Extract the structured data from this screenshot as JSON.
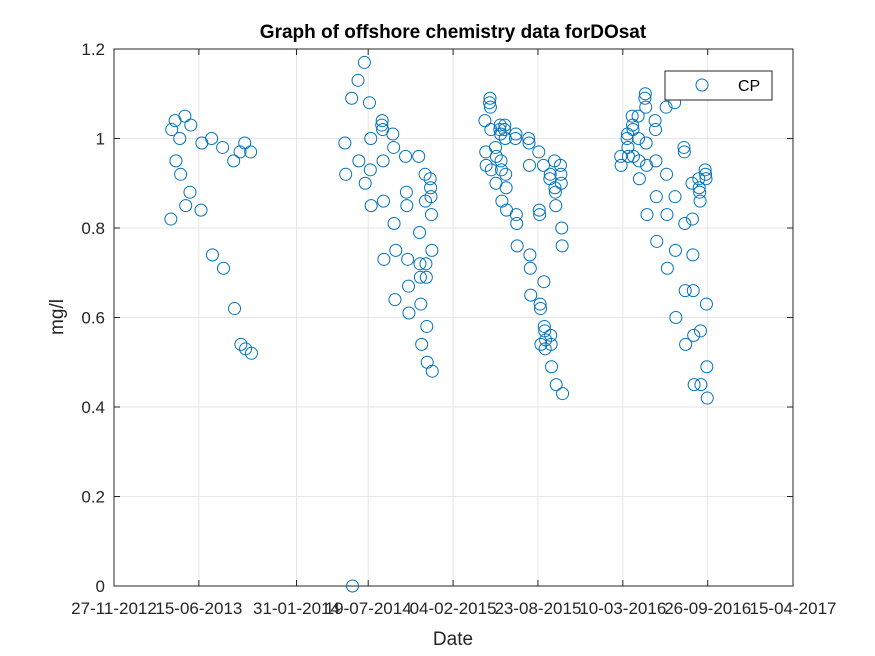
{
  "chart_data": {
    "type": "scatter",
    "title": "Graph of offshore chemistry data forDOsat",
    "xlabel": "Date",
    "ylabel": "mg/l",
    "xlim": [
      "2012-11-27",
      "2017-04-15"
    ],
    "ylim": [
      0,
      1.2
    ],
    "x_ticks": [
      "27-11-2012",
      "15-06-2013",
      "31-01-2014",
      "19-07-2014",
      "04-02-2015",
      "23-08-2015",
      "10-03-2016",
      "26-09-2016",
      "15-04-2017"
    ],
    "y_ticks": [
      "0",
      "0.2",
      "0.4",
      "0.6",
      "0.8",
      "1",
      "1.2"
    ],
    "grid": true,
    "legend_position": "top-right",
    "marker": "open-circle",
    "color": "#0072bd",
    "series": [
      {
        "name": "CP",
        "points": [
          [
            "2013-04-10",
            0.82
          ],
          [
            "2013-04-12",
            1.02
          ],
          [
            "2013-04-20",
            1.04
          ],
          [
            "2013-04-22",
            0.95
          ],
          [
            "2013-05-01",
            1.0
          ],
          [
            "2013-05-03",
            0.92
          ],
          [
            "2013-05-13",
            1.05
          ],
          [
            "2013-05-15",
            0.85
          ],
          [
            "2013-05-25",
            0.88
          ],
          [
            "2013-05-27",
            1.03
          ],
          [
            "2013-06-20",
            0.84
          ],
          [
            "2013-06-22",
            0.99
          ],
          [
            "2013-07-15",
            1.0
          ],
          [
            "2013-07-17",
            0.74
          ],
          [
            "2013-08-10",
            0.98
          ],
          [
            "2013-08-12",
            0.71
          ],
          [
            "2013-09-05",
            0.95
          ],
          [
            "2013-09-07",
            0.62
          ],
          [
            "2013-09-20",
            0.97
          ],
          [
            "2013-09-22",
            0.54
          ],
          [
            "2013-10-01",
            0.99
          ],
          [
            "2013-10-03",
            0.53
          ],
          [
            "2013-10-15",
            0.97
          ],
          [
            "2013-10-17",
            0.52
          ],
          [
            "2014-05-25",
            0.99
          ],
          [
            "2014-05-27",
            0.92
          ],
          [
            "2014-06-10",
            1.09
          ],
          [
            "2014-06-12",
            0.0
          ],
          [
            "2014-06-25",
            1.13
          ],
          [
            "2014-06-27",
            0.95
          ],
          [
            "2014-07-10",
            1.17
          ],
          [
            "2014-07-12",
            0.9
          ],
          [
            "2014-07-22",
            1.08
          ],
          [
            "2014-07-24",
            0.93
          ],
          [
            "2014-07-25",
            1.0
          ],
          [
            "2014-07-26",
            0.85
          ],
          [
            "2014-08-20",
            1.03
          ],
          [
            "2014-08-21",
            1.04
          ],
          [
            "2014-08-22",
            1.02
          ],
          [
            "2014-08-23",
            0.95
          ],
          [
            "2014-08-24",
            0.86
          ],
          [
            "2014-08-25",
            0.73
          ],
          [
            "2014-09-15",
            1.01
          ],
          [
            "2014-09-17",
            0.98
          ],
          [
            "2014-09-18",
            0.81
          ],
          [
            "2014-09-20",
            0.64
          ],
          [
            "2014-09-22",
            0.75
          ],
          [
            "2014-10-15",
            0.96
          ],
          [
            "2014-10-17",
            0.88
          ],
          [
            "2014-10-18",
            0.85
          ],
          [
            "2014-10-20",
            0.73
          ],
          [
            "2014-10-22",
            0.67
          ],
          [
            "2014-10-23",
            0.61
          ],
          [
            "2014-11-15",
            0.96
          ],
          [
            "2014-11-17",
            0.79
          ],
          [
            "2014-11-18",
            0.72
          ],
          [
            "2014-11-19",
            0.69
          ],
          [
            "2014-11-20",
            0.63
          ],
          [
            "2014-11-22",
            0.54
          ],
          [
            "2014-11-30",
            0.92
          ],
          [
            "2014-12-01",
            0.86
          ],
          [
            "2014-12-02",
            0.72
          ],
          [
            "2014-12-03",
            0.69
          ],
          [
            "2014-12-04",
            0.58
          ],
          [
            "2014-12-05",
            0.5
          ],
          [
            "2014-12-12",
            0.91
          ],
          [
            "2014-12-13",
            0.89
          ],
          [
            "2014-12-14",
            0.87
          ],
          [
            "2014-12-15",
            0.83
          ],
          [
            "2014-12-16",
            0.75
          ],
          [
            "2014-12-17",
            0.48
          ],
          [
            "2015-04-20",
            1.04
          ],
          [
            "2015-04-22",
            0.97
          ],
          [
            "2015-04-23",
            0.94
          ],
          [
            "2015-05-01",
            1.08
          ],
          [
            "2015-05-02",
            1.09
          ],
          [
            "2015-05-03",
            1.07
          ],
          [
            "2015-05-04",
            1.02
          ],
          [
            "2015-05-05",
            0.93
          ],
          [
            "2015-05-15",
            0.98
          ],
          [
            "2015-05-16",
            0.9
          ],
          [
            "2015-05-17",
            0.96
          ],
          [
            "2015-05-25",
            1.02
          ],
          [
            "2015-05-26",
            1.03
          ],
          [
            "2015-05-27",
            1.01
          ],
          [
            "2015-05-28",
            0.95
          ],
          [
            "2015-05-29",
            0.93
          ],
          [
            "2015-05-30",
            0.86
          ],
          [
            "2015-06-05",
            1.02
          ],
          [
            "2015-06-06",
            1.03
          ],
          [
            "2015-06-07",
            1.0
          ],
          [
            "2015-06-08",
            0.92
          ],
          [
            "2015-06-09",
            0.89
          ],
          [
            "2015-06-10",
            0.84
          ],
          [
            "2015-07-01",
            1.0
          ],
          [
            "2015-07-02",
            1.01
          ],
          [
            "2015-07-03",
            0.83
          ],
          [
            "2015-07-04",
            0.81
          ],
          [
            "2015-07-05",
            0.76
          ],
          [
            "2015-08-01",
            1.0
          ],
          [
            "2015-08-02",
            0.99
          ],
          [
            "2015-08-03",
            0.94
          ],
          [
            "2015-08-04",
            0.74
          ],
          [
            "2015-08-05",
            0.71
          ],
          [
            "2015-08-06",
            0.65
          ],
          [
            "2015-08-25",
            0.97
          ],
          [
            "2015-08-26",
            0.84
          ],
          [
            "2015-08-27",
            0.83
          ],
          [
            "2015-08-28",
            0.63
          ],
          [
            "2015-08-29",
            0.62
          ],
          [
            "2015-08-30",
            0.54
          ],
          [
            "2015-09-05",
            0.94
          ],
          [
            "2015-09-06",
            0.68
          ],
          [
            "2015-09-07",
            0.58
          ],
          [
            "2015-09-08",
            0.57
          ],
          [
            "2015-09-09",
            0.53
          ],
          [
            "2015-09-10",
            0.55
          ],
          [
            "2015-09-20",
            0.91
          ],
          [
            "2015-09-21",
            0.92
          ],
          [
            "2015-09-22",
            0.56
          ],
          [
            "2015-09-23",
            0.54
          ],
          [
            "2015-09-24",
            0.49
          ],
          [
            "2015-10-01",
            0.95
          ],
          [
            "2015-10-02",
            0.89
          ],
          [
            "2015-10-03",
            0.88
          ],
          [
            "2015-10-04",
            0.85
          ],
          [
            "2015-10-05",
            0.45
          ],
          [
            "2015-10-15",
            0.94
          ],
          [
            "2015-10-16",
            0.92
          ],
          [
            "2015-10-17",
            0.9
          ],
          [
            "2015-10-18",
            0.8
          ],
          [
            "2015-10-19",
            0.76
          ],
          [
            "2015-10-20",
            0.43
          ],
          [
            "2016-03-05",
            0.96
          ],
          [
            "2016-03-06",
            0.94
          ],
          [
            "2016-03-20",
            1.0
          ],
          [
            "2016-03-21",
            1.01
          ],
          [
            "2016-03-22",
            0.98
          ],
          [
            "2016-03-23",
            0.96
          ],
          [
            "2016-04-01",
            1.05
          ],
          [
            "2016-04-02",
            1.03
          ],
          [
            "2016-04-03",
            1.02
          ],
          [
            "2016-04-04",
            0.96
          ],
          [
            "2016-04-15",
            1.05
          ],
          [
            "2016-04-16",
            1.0
          ],
          [
            "2016-04-17",
            0.95
          ],
          [
            "2016-04-18",
            0.91
          ],
          [
            "2016-05-01",
            1.09
          ],
          [
            "2016-05-02",
            1.1
          ],
          [
            "2016-05-03",
            1.07
          ],
          [
            "2016-05-04",
            0.99
          ],
          [
            "2016-05-05",
            0.94
          ],
          [
            "2016-05-06",
            0.83
          ],
          [
            "2016-05-25",
            1.04
          ],
          [
            "2016-05-26",
            1.02
          ],
          [
            "2016-05-27",
            0.95
          ],
          [
            "2016-05-28",
            0.87
          ],
          [
            "2016-05-29",
            0.77
          ],
          [
            "2016-06-20",
            1.07
          ],
          [
            "2016-06-21",
            0.92
          ],
          [
            "2016-06-22",
            0.83
          ],
          [
            "2016-06-23",
            0.71
          ],
          [
            "2016-07-10",
            1.08
          ],
          [
            "2016-07-11",
            0.87
          ],
          [
            "2016-07-12",
            0.75
          ],
          [
            "2016-07-13",
            0.6
          ],
          [
            "2016-08-01",
            0.98
          ],
          [
            "2016-08-02",
            0.97
          ],
          [
            "2016-08-03",
            0.81
          ],
          [
            "2016-08-04",
            0.66
          ],
          [
            "2016-08-05",
            0.54
          ],
          [
            "2016-08-20",
            0.9
          ],
          [
            "2016-08-21",
            0.82
          ],
          [
            "2016-08-22",
            0.74
          ],
          [
            "2016-08-23",
            0.66
          ],
          [
            "2016-08-24",
            0.56
          ],
          [
            "2016-08-25",
            0.45
          ],
          [
            "2016-09-05",
            0.91
          ],
          [
            "2016-09-06",
            0.89
          ],
          [
            "2016-09-07",
            0.88
          ],
          [
            "2016-09-08",
            0.86
          ],
          [
            "2016-09-09",
            0.57
          ],
          [
            "2016-09-10",
            0.45
          ],
          [
            "2016-09-20",
            0.93
          ],
          [
            "2016-09-21",
            0.92
          ],
          [
            "2016-09-22",
            0.91
          ],
          [
            "2016-09-23",
            0.63
          ],
          [
            "2016-09-24",
            0.49
          ],
          [
            "2016-09-25",
            0.42
          ]
        ]
      }
    ]
  }
}
